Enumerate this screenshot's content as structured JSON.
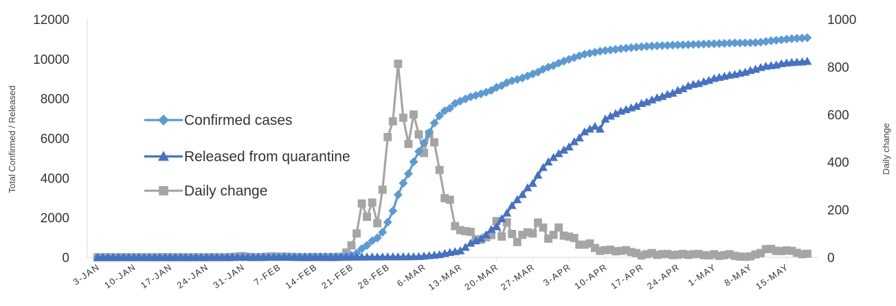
{
  "chart_data": {
    "type": "line",
    "ylabel": "Total Confirmed / Released",
    "y2label": "Daily change",
    "ylim": [
      0,
      12000
    ],
    "y2lim": [
      0,
      1000
    ],
    "yticks": [
      "0",
      "2000",
      "4000",
      "6000",
      "8000",
      "10000",
      "12000"
    ],
    "y2ticks": [
      "0",
      "200",
      "400",
      "600",
      "800",
      "1000"
    ],
    "x_start_date": "2020-01-03",
    "xticks": [
      {
        "day": 0,
        "label": "3-JAN"
      },
      {
        "day": 7,
        "label": "10-JAN"
      },
      {
        "day": 14,
        "label": "17-JAN"
      },
      {
        "day": 21,
        "label": "24-JAN"
      },
      {
        "day": 28,
        "label": "31-JAN"
      },
      {
        "day": 35,
        "label": "7-FEB"
      },
      {
        "day": 42,
        "label": "14-FEB"
      },
      {
        "day": 49,
        "label": "21-FEB"
      },
      {
        "day": 56,
        "label": "28-FEB"
      },
      {
        "day": 63,
        "label": "6-MAR"
      },
      {
        "day": 70,
        "label": "13-MAR"
      },
      {
        "day": 77,
        "label": "20-MAR"
      },
      {
        "day": 84,
        "label": "27-MAR"
      },
      {
        "day": 91,
        "label": "3-APR"
      },
      {
        "day": 98,
        "label": "10-APR"
      },
      {
        "day": 105,
        "label": "17-APR"
      },
      {
        "day": 112,
        "label": "24-APR"
      },
      {
        "day": 119,
        "label": "1-MAY"
      },
      {
        "day": 126,
        "label": "8-MAY"
      },
      {
        "day": 133,
        "label": "15-MAY"
      }
    ],
    "grid": false,
    "legend_position": "left-middle",
    "series": [
      {
        "name": "Confirmed cases",
        "axis": "left",
        "marker": "diamond",
        "color": "#5b9bd5",
        "points": [
          [
            0,
            0
          ],
          [
            25,
            0
          ],
          [
            26,
            4
          ],
          [
            30,
            11
          ],
          [
            35,
            24
          ],
          [
            42,
            28
          ],
          [
            47,
            31
          ],
          [
            48,
            51
          ],
          [
            49,
            104
          ],
          [
            50,
            204
          ],
          [
            51,
            433
          ],
          [
            52,
            602
          ],
          [
            53,
            833
          ],
          [
            54,
            977
          ],
          [
            55,
            1261
          ],
          [
            56,
            1766
          ],
          [
            57,
            2337
          ],
          [
            58,
            3150
          ],
          [
            59,
            3736
          ],
          [
            60,
            4212
          ],
          [
            61,
            4812
          ],
          [
            62,
            5328
          ],
          [
            63,
            5766
          ],
          [
            64,
            6284
          ],
          [
            65,
            6767
          ],
          [
            66,
            7134
          ],
          [
            67,
            7382
          ],
          [
            68,
            7513
          ],
          [
            69,
            7755
          ],
          [
            70,
            7869
          ],
          [
            71,
            7979
          ],
          [
            72,
            8086
          ],
          [
            73,
            8162
          ],
          [
            74,
            8236
          ],
          [
            75,
            8320
          ],
          [
            76,
            8413
          ],
          [
            77,
            8565
          ],
          [
            78,
            8652
          ],
          [
            79,
            8799
          ],
          [
            80,
            8897
          ],
          [
            81,
            8961
          ],
          [
            82,
            9037
          ],
          [
            83,
            9137
          ],
          [
            84,
            9241
          ],
          [
            85,
            9332
          ],
          [
            86,
            9478
          ],
          [
            87,
            9583
          ],
          [
            88,
            9661
          ],
          [
            89,
            9786
          ],
          [
            90,
            9887
          ],
          [
            91,
            9976
          ],
          [
            92,
            10062
          ],
          [
            93,
            10156
          ],
          [
            94,
            10237
          ],
          [
            95,
            10284
          ],
          [
            96,
            10331
          ],
          [
            97,
            10384
          ],
          [
            98,
            10423
          ],
          [
            99,
            10450
          ],
          [
            100,
            10480
          ],
          [
            101,
            10512
          ],
          [
            102,
            10537
          ],
          [
            103,
            10564
          ],
          [
            104,
            10591
          ],
          [
            105,
            10613
          ],
          [
            106,
            10635
          ],
          [
            107,
            10653
          ],
          [
            108,
            10661
          ],
          [
            109,
            10674
          ],
          [
            110,
            10683
          ],
          [
            111,
            10694
          ],
          [
            112,
            10702
          ],
          [
            113,
            10708
          ],
          [
            114,
            10718
          ],
          [
            115,
            10728
          ],
          [
            116,
            10738
          ],
          [
            117,
            10752
          ],
          [
            118,
            10761
          ],
          [
            119,
            10765
          ],
          [
            120,
            10774
          ],
          [
            121,
            10780
          ],
          [
            122,
            10793
          ],
          [
            123,
            10801
          ],
          [
            124,
            10804
          ],
          [
            125,
            10806
          ],
          [
            126,
            10810
          ],
          [
            127,
            10822
          ],
          [
            128,
            10840
          ],
          [
            129,
            10874
          ],
          [
            130,
            10909
          ],
          [
            131,
            10936
          ],
          [
            132,
            10962
          ],
          [
            133,
            10991
          ],
          [
            134,
            11018
          ],
          [
            135,
            11037
          ],
          [
            136,
            11050
          ],
          [
            137,
            11065
          ]
        ]
      },
      {
        "name": "Released from quarantine",
        "axis": "left",
        "marker": "triangle",
        "color": "#4472c4",
        "points": [
          [
            0,
            0
          ],
          [
            48,
            10
          ],
          [
            50,
            16
          ],
          [
            52,
            18
          ],
          [
            54,
            22
          ],
          [
            56,
            24
          ],
          [
            58,
            27
          ],
          [
            60,
            30
          ],
          [
            62,
            41
          ],
          [
            64,
            88
          ],
          [
            66,
            135
          ],
          [
            68,
            247
          ],
          [
            70,
            333
          ],
          [
            71,
            510
          ],
          [
            72,
            714
          ],
          [
            73,
            834
          ],
          [
            74,
            947
          ],
          [
            75,
            1137
          ],
          [
            76,
            1407
          ],
          [
            77,
            1540
          ],
          [
            78,
            1947
          ],
          [
            79,
            2233
          ],
          [
            80,
            2612
          ],
          [
            81,
            2909
          ],
          [
            82,
            3166
          ],
          [
            83,
            3507
          ],
          [
            84,
            3730
          ],
          [
            85,
            4144
          ],
          [
            86,
            4528
          ],
          [
            87,
            4811
          ],
          [
            88,
            5033
          ],
          [
            89,
            5228
          ],
          [
            90,
            5408
          ],
          [
            91,
            5567
          ],
          [
            92,
            5828
          ],
          [
            93,
            6021
          ],
          [
            94,
            6325
          ],
          [
            95,
            6463
          ],
          [
            96,
            6598
          ],
          [
            97,
            6463
          ],
          [
            98,
            6973
          ],
          [
            99,
            7117
          ],
          [
            100,
            7243
          ],
          [
            101,
            7368
          ],
          [
            102,
            7447
          ],
          [
            103,
            7534
          ],
          [
            104,
            7616
          ],
          [
            105,
            7757
          ],
          [
            106,
            7829
          ],
          [
            107,
            7937
          ],
          [
            108,
            8042
          ],
          [
            109,
            8114
          ],
          [
            110,
            8213
          ],
          [
            111,
            8277
          ],
          [
            112,
            8411
          ],
          [
            113,
            8501
          ],
          [
            114,
            8635
          ],
          [
            115,
            8717
          ],
          [
            116,
            8764
          ],
          [
            117,
            8854
          ],
          [
            118,
            8922
          ],
          [
            119,
            9019
          ],
          [
            120,
            9072
          ],
          [
            121,
            9123
          ],
          [
            122,
            9183
          ],
          [
            123,
            9217
          ],
          [
            124,
            9283
          ],
          [
            125,
            9333
          ],
          [
            126,
            9419
          ],
          [
            127,
            9484
          ],
          [
            128,
            9568
          ],
          [
            129,
            9632
          ],
          [
            130,
            9666
          ],
          [
            131,
            9695
          ],
          [
            132,
            9762
          ],
          [
            133,
            9800
          ],
          [
            134,
            9821
          ],
          [
            135,
            9838
          ],
          [
            136,
            9851
          ],
          [
            137,
            9882
          ]
        ]
      },
      {
        "name": "Daily change",
        "axis": "right",
        "marker": "square",
        "color": "#a5a5a5",
        "points": [
          [
            0,
            0
          ],
          [
            25,
            0
          ],
          [
            27,
            3
          ],
          [
            28,
            5
          ],
          [
            29,
            2
          ],
          [
            30,
            0
          ],
          [
            32,
            1
          ],
          [
            34,
            4
          ],
          [
            35,
            2
          ],
          [
            36,
            3
          ],
          [
            38,
            1
          ],
          [
            40,
            0
          ],
          [
            42,
            1
          ],
          [
            45,
            0
          ],
          [
            47,
            2
          ],
          [
            48,
            20
          ],
          [
            49,
            50
          ],
          [
            50,
            100
          ],
          [
            51,
            226
          ],
          [
            52,
            170
          ],
          [
            53,
            230
          ],
          [
            54,
            143
          ],
          [
            55,
            284
          ],
          [
            56,
            505
          ],
          [
            57,
            571
          ],
          [
            58,
            813
          ],
          [
            59,
            586
          ],
          [
            60,
            476
          ],
          [
            61,
            600
          ],
          [
            62,
            516
          ],
          [
            63,
            438
          ],
          [
            64,
            518
          ],
          [
            65,
            483
          ],
          [
            66,
            367
          ],
          [
            67,
            248
          ],
          [
            68,
            242
          ],
          [
            69,
            131
          ],
          [
            70,
            114
          ],
          [
            71,
            110
          ],
          [
            72,
            107
          ],
          [
            73,
            76
          ],
          [
            74,
            74
          ],
          [
            75,
            84
          ],
          [
            76,
            93
          ],
          [
            77,
            152
          ],
          [
            78,
            87
          ],
          [
            79,
            147
          ],
          [
            80,
            98
          ],
          [
            81,
            64
          ],
          [
            82,
            94
          ],
          [
            83,
            105
          ],
          [
            84,
            100
          ],
          [
            85,
            146
          ],
          [
            86,
            125
          ],
          [
            87,
            78
          ],
          [
            88,
            94
          ],
          [
            89,
            125
          ],
          [
            90,
            91
          ],
          [
            91,
            87
          ],
          [
            92,
            81
          ],
          [
            93,
            53
          ],
          [
            94,
            53
          ],
          [
            95,
            58
          ],
          [
            96,
            39
          ],
          [
            97,
            27
          ],
          [
            98,
            30
          ],
          [
            99,
            32
          ],
          [
            100,
            25
          ],
          [
            101,
            27
          ],
          [
            102,
            30
          ],
          [
            103,
            22
          ],
          [
            104,
            18
          ],
          [
            105,
            8
          ],
          [
            106,
            13
          ],
          [
            107,
            18
          ],
          [
            108,
            10
          ],
          [
            109,
            13
          ],
          [
            110,
            14
          ],
          [
            111,
            9
          ],
          [
            112,
            11
          ],
          [
            113,
            14
          ],
          [
            114,
            10
          ],
          [
            115,
            13
          ],
          [
            116,
            14
          ],
          [
            117,
            9
          ],
          [
            118,
            8
          ],
          [
            119,
            13
          ],
          [
            120,
            6
          ],
          [
            121,
            9
          ],
          [
            122,
            13
          ],
          [
            123,
            6
          ],
          [
            124,
            3
          ],
          [
            125,
            2
          ],
          [
            126,
            4
          ],
          [
            127,
            12
          ],
          [
            128,
            18
          ],
          [
            129,
            34
          ],
          [
            130,
            35
          ],
          [
            131,
            27
          ],
          [
            132,
            26
          ],
          [
            133,
            29
          ],
          [
            134,
            27
          ],
          [
            135,
            19
          ],
          [
            136,
            13
          ],
          [
            137,
            15
          ]
        ]
      }
    ]
  }
}
